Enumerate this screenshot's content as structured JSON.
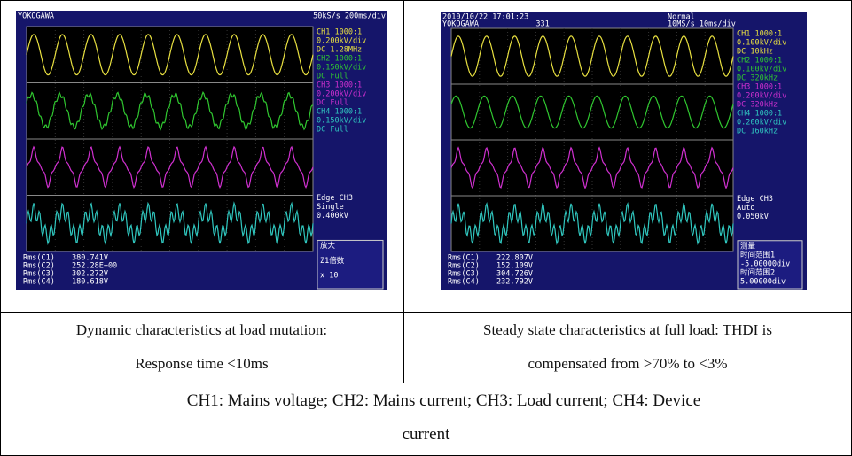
{
  "panels": [
    {
      "top": [
        "YOKOGAWA",
        "50kS/s 200ms/div"
      ],
      "channels": [
        [
          "CH1 1000:1",
          "0.200kV/div",
          "DC 1.28MHz"
        ],
        [
          "CH2 1000:1",
          "0.150kV/div",
          "DC Full"
        ],
        [
          "CH3 1000:1",
          "0.200kV/div",
          "DC Full"
        ],
        [
          "CH4 1000:1",
          "0.150kV/div",
          "DC Full"
        ]
      ],
      "trigger": [
        "Edge CH3",
        "Single",
        "0.400kV"
      ],
      "measurements": [
        [
          "Rms(C1)",
          "380.741V"
        ],
        [
          "Rms(C2)",
          "252.28E+00"
        ],
        [
          "Rms(C3)",
          "302.272V"
        ],
        [
          "Rms(C4)",
          "180.618V"
        ]
      ],
      "menu": [
        "放大",
        "Z1倍数",
        "x 10"
      ],
      "caption": [
        "Dynamic characteristics at load mutation:",
        "Response time <10ms"
      ]
    },
    {
      "top": [
        "2010/10/22 17:01:23",
        "Normal",
        "YOKOGAWA",
        "331",
        "10MS/s 10ms/div"
      ],
      "channels": [
        [
          "CH1 1000:1",
          "0.100kV/div",
          "DC 10kHz"
        ],
        [
          "CH2 1000:1",
          "0.100kV/div",
          "DC 320kHz"
        ],
        [
          "CH3 1000:1",
          "0.200kV/div",
          "DC 320kHz"
        ],
        [
          "CH4 1000:1",
          "0.200kV/div",
          "DC 160kHz"
        ]
      ],
      "trigger": [
        "Edge CH3",
        "Auto",
        "0.050kV"
      ],
      "measurements": [
        [
          "Rms(C1)",
          "222.807V"
        ],
        [
          "Rms(C2)",
          "152.109V"
        ],
        [
          "Rms(C3)",
          "304.726V"
        ],
        [
          "Rms(C4)",
          "232.792V"
        ]
      ],
      "menu": [
        "测量",
        "时间范围1",
        "-5.00000div",
        "时间范围2",
        "5.00000div"
      ],
      "caption": [
        "Steady state characteristics at full load: THDI is",
        "compensated from >70% to <3%"
      ]
    }
  ],
  "footnote": [
    "CH1: Mains voltage; CH2: Mains current; CH3: Load current; CH4: Device",
    "current"
  ]
}
